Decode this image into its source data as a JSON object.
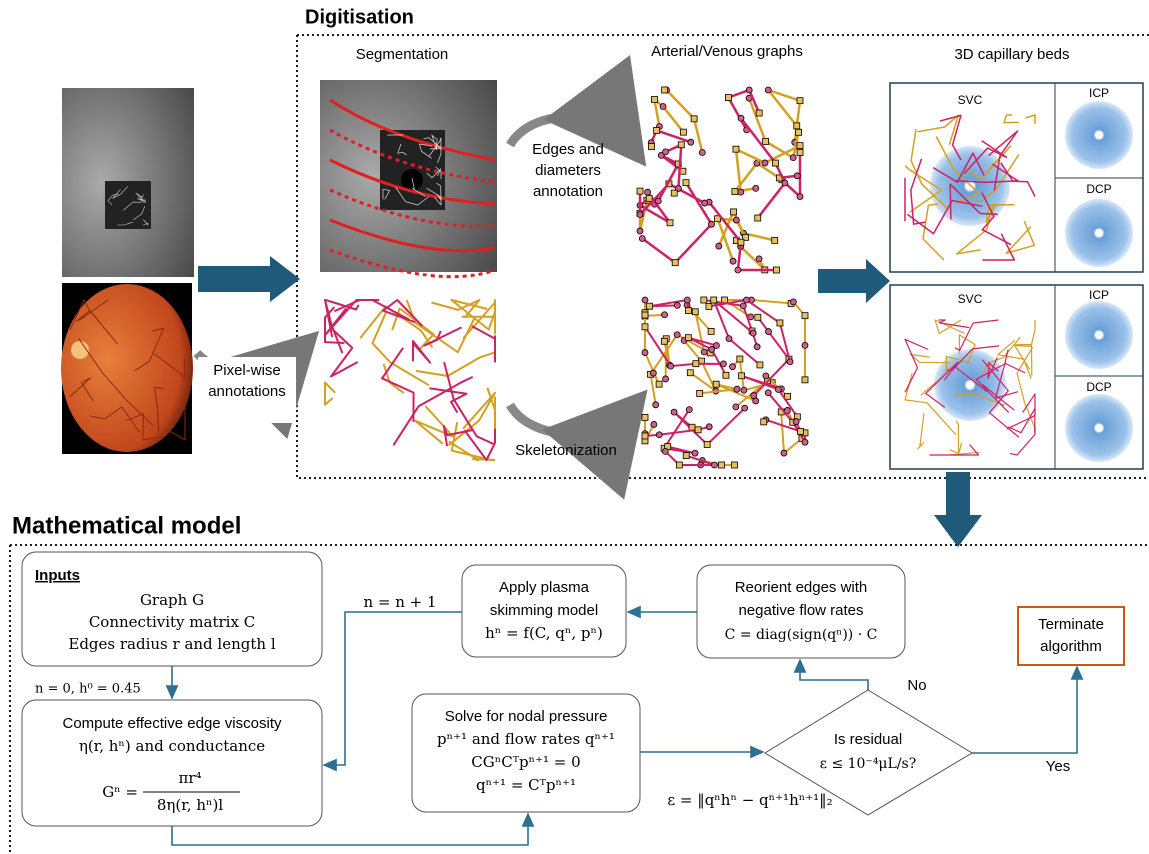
{
  "digitisation": {
    "title": "Digitisation",
    "segmentation_label": "Segmentation",
    "graphs_label": "Arterial/Venous graphs",
    "capillary_label": "3D capillary beds",
    "edges_annotation": [
      "Edges and",
      "diameters",
      "annotation"
    ],
    "pixel_annotations": [
      "Pixel-wise",
      "annotations"
    ],
    "skeletonization": "Skeletonization",
    "panels": [
      {
        "svc": "SVC",
        "icp": "ICP",
        "dcp": "DCP"
      },
      {
        "svc": "SVC",
        "icp": "ICP",
        "dcp": "DCP"
      }
    ]
  },
  "model": {
    "title": "Mathematical model",
    "inputs": {
      "heading": "Inputs",
      "lines": [
        "Graph G",
        "Connectivity matrix C",
        "Edges radius r and length l"
      ]
    },
    "init": "n = 0, h⁰ = 0.45",
    "compute": {
      "lines": [
        "Compute effective edge viscosity",
        "η(r, hⁿ) and conductance"
      ],
      "formula_lhs": "Gⁿ =",
      "formula_num": "πr⁴",
      "formula_den": "8η(r, hⁿ)l"
    },
    "increment": "n = n + 1",
    "apply": {
      "lines": [
        "Apply plasma",
        "skimming model",
        "hⁿ = f(C, qⁿ, pⁿ)"
      ]
    },
    "reorient": {
      "lines": [
        "Reorient edges with",
        "negative flow rates",
        "C = diag(sign(qⁿ)) · C"
      ]
    },
    "terminate": {
      "lines": [
        "Terminate",
        "algorithm"
      ]
    },
    "solve": {
      "lines": [
        "Solve for nodal pressure",
        "pⁿ⁺¹ and flow rates qⁿ⁺¹",
        "CGⁿCᵀpⁿ⁺¹ = 0",
        "qⁿ⁺¹ = Cᵀpⁿ⁺¹"
      ]
    },
    "decision": {
      "lines": [
        "Is residual",
        "ε ≤ 10⁻⁴μL/s?"
      ],
      "no": "No",
      "yes": "Yes"
    },
    "residual": "ε = ‖qⁿhⁿ − qⁿ⁺¹hⁿ⁺¹‖₂"
  }
}
